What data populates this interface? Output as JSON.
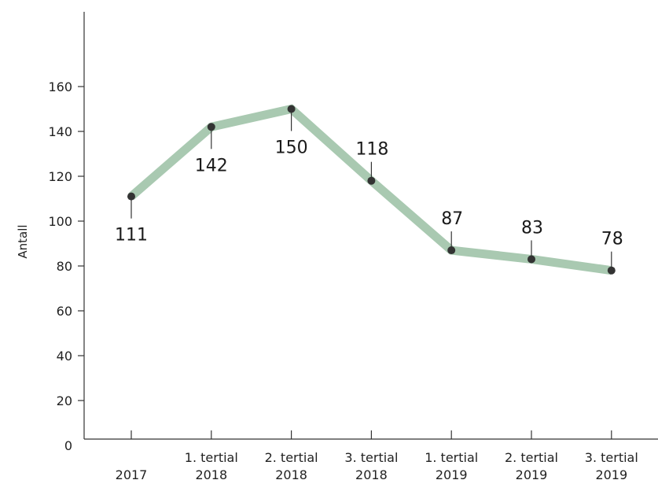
{
  "chart_data": {
    "type": "line",
    "title": "",
    "xlabel": "",
    "ylabel": "Antall",
    "ylim": [
      0,
      180
    ],
    "yticks": [
      0,
      20,
      40,
      60,
      80,
      100,
      120,
      140,
      160
    ],
    "grid": false,
    "categories": [
      [
        "",
        "2017"
      ],
      [
        "1. tertial",
        "2018"
      ],
      [
        "2. tertial",
        "2018"
      ],
      [
        "3. tertial",
        "2018"
      ],
      [
        "1. tertial",
        "2019"
      ],
      [
        "2. tertial",
        "2019"
      ],
      [
        "3. tertial",
        "2019"
      ]
    ],
    "series": [
      {
        "values": [
          111,
          142,
          150,
          118,
          87,
          83,
          78
        ],
        "labels": [
          "111",
          "142",
          "150",
          "118",
          "87",
          "83",
          "78"
        ],
        "color": "#a9c9b1",
        "marker_color": "#333333"
      }
    ]
  }
}
